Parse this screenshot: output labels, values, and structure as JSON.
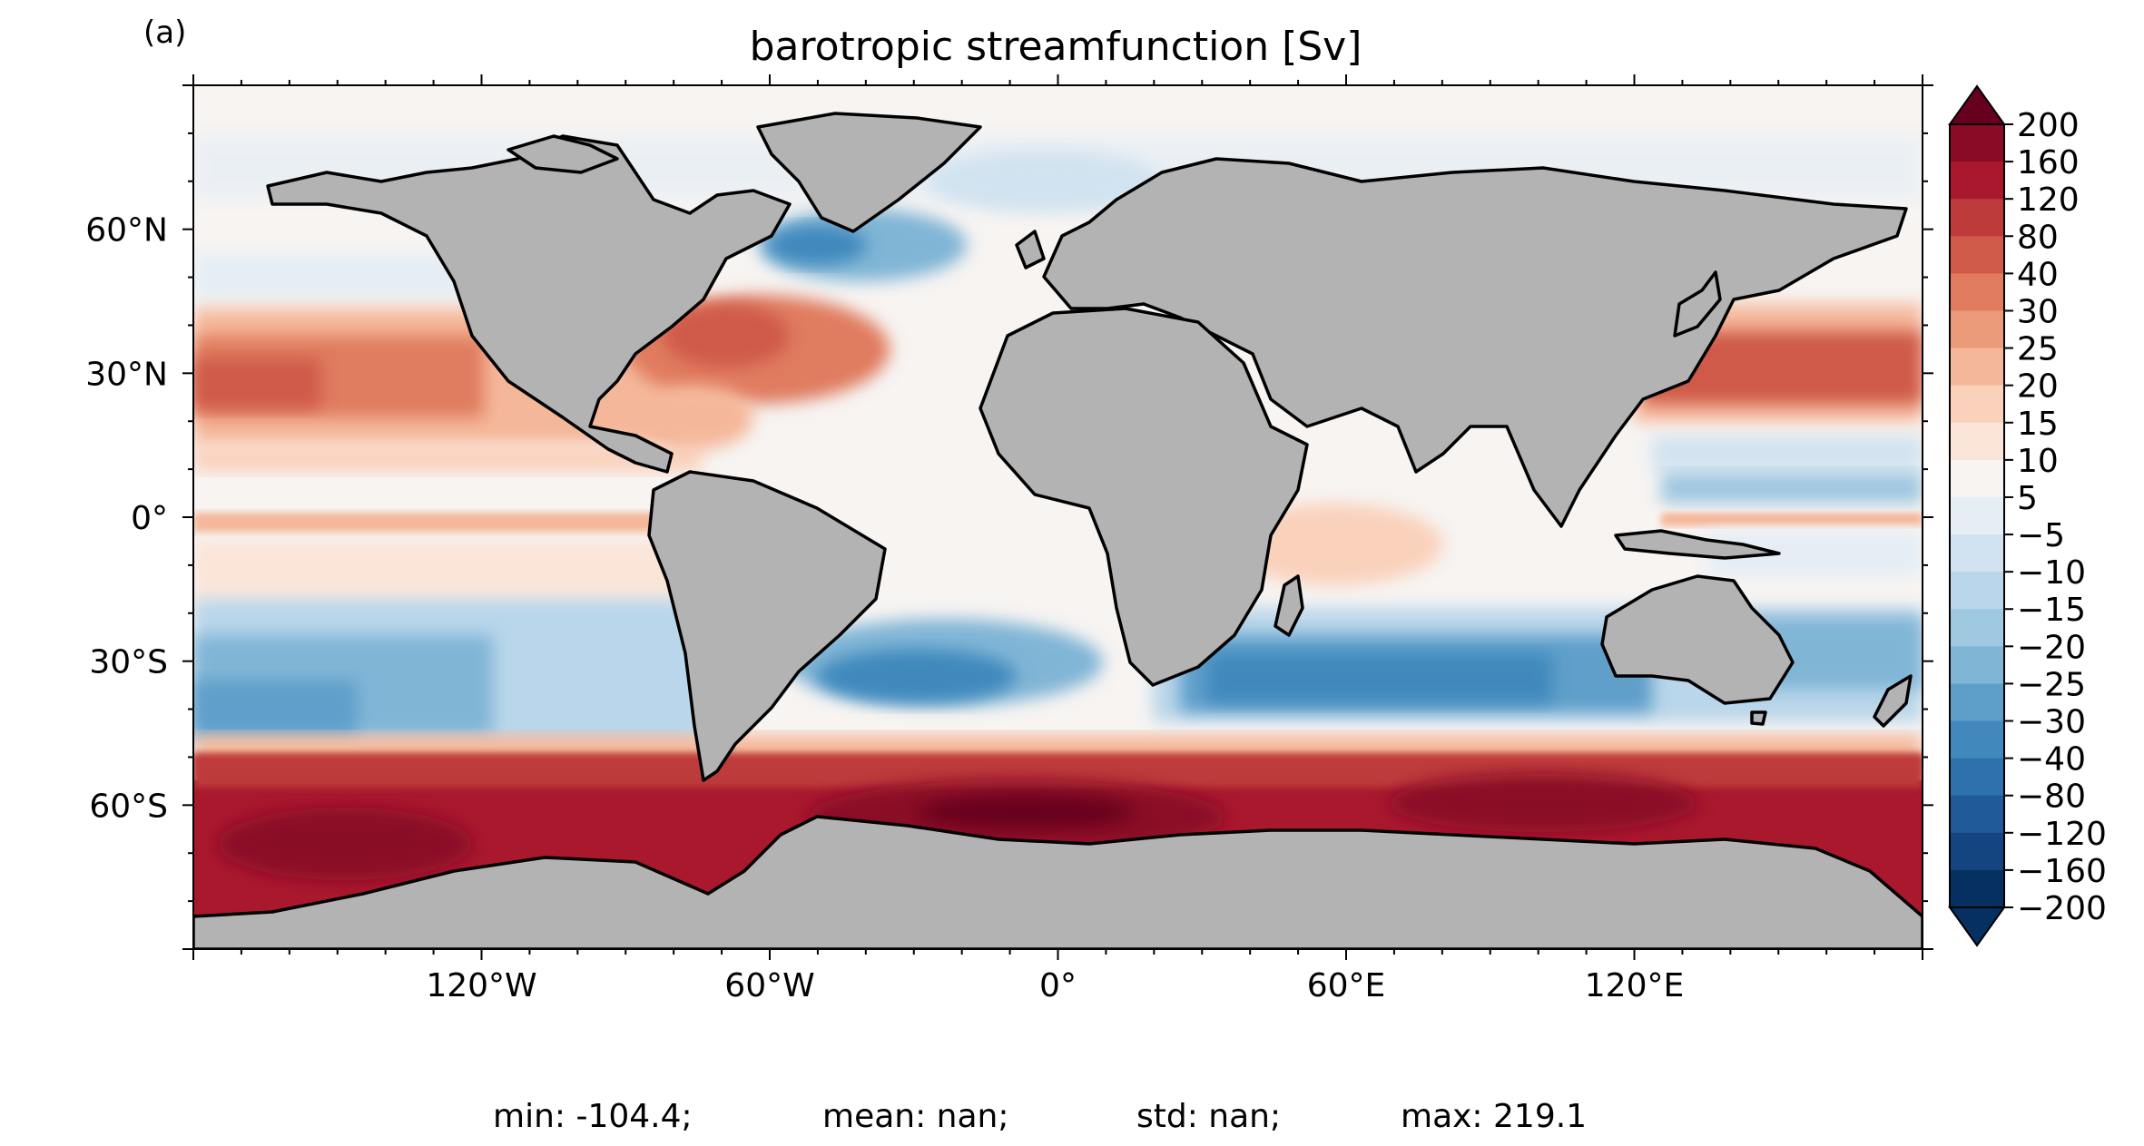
{
  "panel_label": "(a)",
  "title": "barotropic streamfunction [Sv]",
  "map": {
    "projection": "PlateCarree",
    "lon_range": [
      -180,
      180
    ],
    "lat_range": [
      -90,
      90
    ],
    "land_color": "#b3b3b3",
    "coastline_color": "#000000",
    "x_ticks": [
      {
        "lon": -120,
        "label": "120°W"
      },
      {
        "lon": -60,
        "label": "60°W"
      },
      {
        "lon": 0,
        "label": "0°"
      },
      {
        "lon": 60,
        "label": "60°E"
      },
      {
        "lon": 120,
        "label": "120°E"
      }
    ],
    "y_ticks": [
      {
        "lat": 60,
        "label": "60°N"
      },
      {
        "lat": 30,
        "label": "30°N"
      },
      {
        "lat": 0,
        "label": "0°"
      },
      {
        "lat": -30,
        "label": "30°S"
      },
      {
        "lat": -60,
        "label": "60°S"
      }
    ]
  },
  "colorbar": {
    "levels": [
      {
        "label": "200",
        "color": "#67001f"
      },
      {
        "label": "160",
        "color": "#8a0b25"
      },
      {
        "label": "120",
        "color": "#a9182d"
      },
      {
        "label": "80",
        "color": "#bd3b3b"
      },
      {
        "label": "40",
        "color": "#cf5a4a"
      },
      {
        "label": "30",
        "color": "#e07b5e"
      },
      {
        "label": "25",
        "color": "#ec9b7a"
      },
      {
        "label": "20",
        "color": "#f5b79a"
      },
      {
        "label": "15",
        "color": "#fad1bb"
      },
      {
        "label": "10",
        "color": "#fbe5d9"
      },
      {
        "label": "5",
        "color": "#f7f4f2"
      },
      {
        "label": "−5",
        "color": "#e5eef5"
      },
      {
        "label": "−10",
        "color": "#d1e3f0"
      },
      {
        "label": "−15",
        "color": "#b9d6ea"
      },
      {
        "label": "−20",
        "color": "#9fc8e1"
      },
      {
        "label": "−25",
        "color": "#80b5d6"
      },
      {
        "label": "−30",
        "color": "#5e9fca"
      },
      {
        "label": "−40",
        "color": "#4189bd"
      },
      {
        "label": "−80",
        "color": "#2f71ad"
      },
      {
        "label": "−120",
        "color": "#215a99"
      },
      {
        "label": "−160",
        "color": "#154580"
      },
      {
        "label": "−200",
        "color": "#053061"
      }
    ],
    "extend": "both"
  },
  "stats": {
    "min": "min: -104.4;",
    "mean": "mean: nan;",
    "std": "std: nan;",
    "max": "max: 219.1"
  }
}
